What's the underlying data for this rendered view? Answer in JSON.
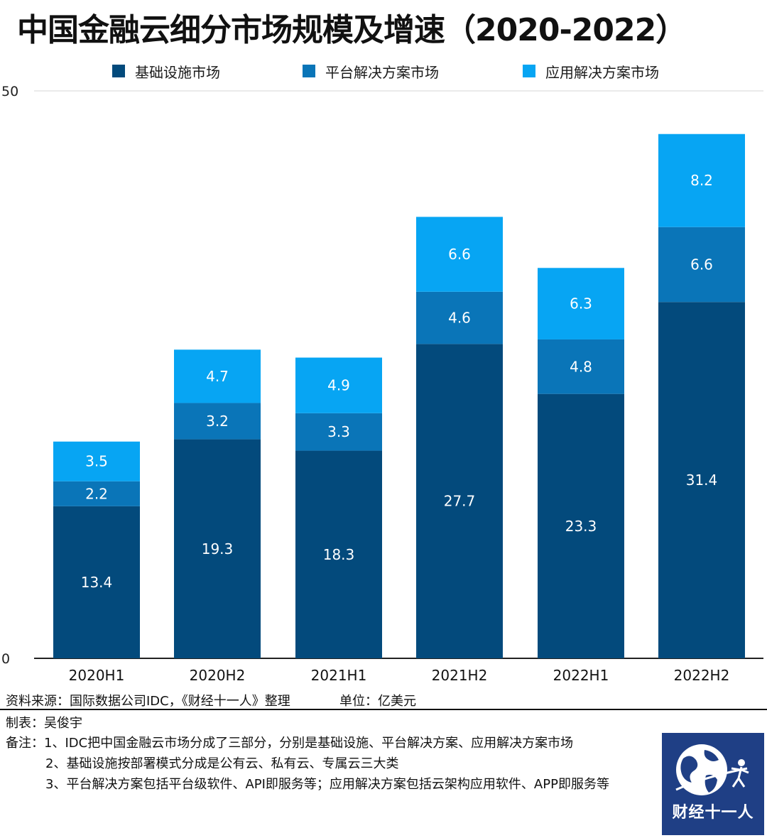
{
  "header": {
    "title": "中国金融云细分市场规模及增速（2020-2022）"
  },
  "colors": {
    "infra": "#034a7c",
    "platform": "#0a75b8",
    "app": "#07a5f3"
  },
  "legend": [
    {
      "label": "基础设施市场",
      "color": "#034a7c"
    },
    {
      "label": "平台解决方案市场",
      "color": "#0a75b8"
    },
    {
      "label": "应用解决方案市场",
      "color": "#07a5f3"
    }
  ],
  "chart_data": {
    "type": "bar",
    "stacked": true,
    "categories": [
      "2020H1",
      "2020H2",
      "2021H1",
      "2021H2",
      "2022H1",
      "2022H2"
    ],
    "series": [
      {
        "name": "基础设施市场",
        "values": [
          13.4,
          19.3,
          18.3,
          27.7,
          23.3,
          31.4
        ]
      },
      {
        "name": "平台解决方案市场",
        "values": [
          2.2,
          3.2,
          3.3,
          4.6,
          4.8,
          6.6
        ]
      },
      {
        "name": "应用解决方案市场",
        "values": [
          3.5,
          4.7,
          4.9,
          6.6,
          6.3,
          8.2
        ]
      }
    ],
    "y_ticks": [
      "0",
      "50"
    ],
    "ylim": [
      0,
      50
    ],
    "gridlines": "top only",
    "legend_position": "top"
  },
  "footer": {
    "source": "资料来源：国际数据公司IDC，《财经十一人》整理",
    "unit": "单位：亿美元",
    "maker": "制表：吴俊宇",
    "notes": [
      "备注：1、IDC把中国金融云市场分成了三部分，分别是基础设施、平台解决方案、应用解决方案市场",
      "2、基础设施按部署模式分成是公有云、私有云、专属云三大类",
      "3、平台解决方案包括平台级软件、API即服务等；应用解决方案包括云架构应用软件、APP即服务等"
    ]
  },
  "logo": {
    "text": "财经十一人",
    "icon": "globe-icon"
  }
}
